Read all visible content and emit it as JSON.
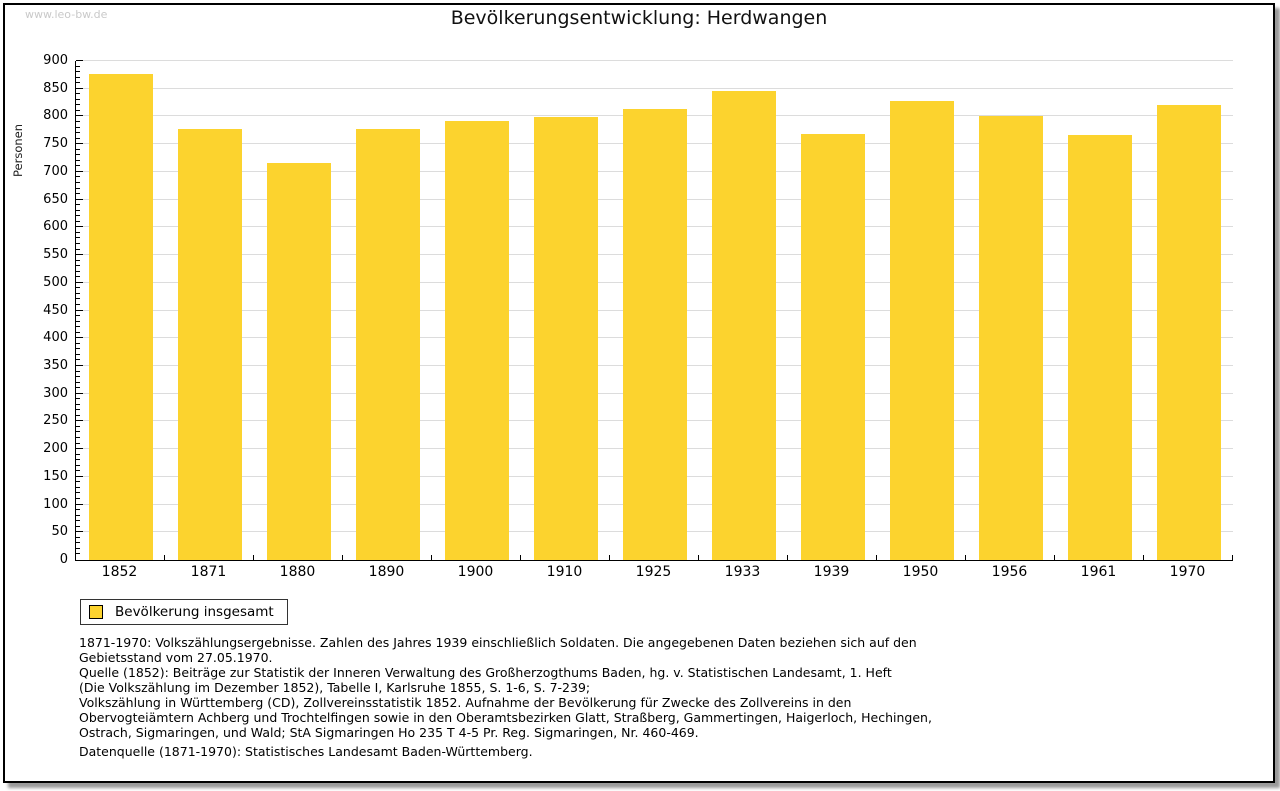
{
  "page": {
    "watermark": "www.leo-bw.de",
    "title": "Bevölkerungsentwicklung: Herdwangen"
  },
  "chart_data": {
    "type": "bar",
    "title": "Bevölkerungsentwicklung: Herdwangen",
    "xlabel": "",
    "ylabel": "Personen",
    "categories": [
      "1852",
      "1871",
      "1880",
      "1890",
      "1900",
      "1910",
      "1925",
      "1933",
      "1939",
      "1950",
      "1956",
      "1961",
      "1970"
    ],
    "values": [
      876,
      777,
      716,
      778,
      791,
      799,
      813,
      845,
      769,
      827,
      800,
      767,
      821
    ],
    "ylim": [
      0,
      900
    ],
    "y_major_step": 50,
    "y_minor_step": 10,
    "y_ticks": [
      0,
      50,
      100,
      150,
      200,
      250,
      300,
      350,
      400,
      450,
      500,
      550,
      600,
      650,
      700,
      750,
      800,
      850,
      900
    ],
    "grid": true,
    "bar_color": "#fcd32e",
    "gridline_color": "#dcdcdc",
    "legend": {
      "position": "bottom-left",
      "entries": [
        "Bevölkerung insgesamt"
      ]
    }
  },
  "footnotes": {
    "paragraphs": [
      [
        "1871-1970: Volkszählungsergebnisse. Zahlen des Jahres 1939 einschließlich Soldaten. Die angegebenen Daten beziehen sich auf den",
        "Gebietsstand vom 27.05.1970.",
        "Quelle (1852): Beiträge zur Statistik der Inneren Verwaltung des Großherzogthums Baden, hg. v. Statistischen Landesamt, 1. Heft",
        "(Die Volkszählung im Dezember 1852), Tabelle I, Karlsruhe 1855, S. 1-6, S. 7-239;",
        "Volkszählung in Württemberg (CD), Zollvereinsstatistik 1852. Aufnahme der Bevölkerung für Zwecke des Zollvereins in den",
        "Obervogteiämtern Achberg und Trochtelfingen sowie in den Oberamtsbezirken Glatt, Straßberg, Gammertingen, Haigerloch, Hechingen,",
        "Ostrach, Sigmaringen, und Wald; StA Sigmaringen Ho 235 T 4-5 Pr. Reg. Sigmaringen, Nr. 460-469."
      ],
      [
        "Datenquelle (1871-1970): Statistisches Landesamt Baden-Württemberg."
      ]
    ]
  }
}
